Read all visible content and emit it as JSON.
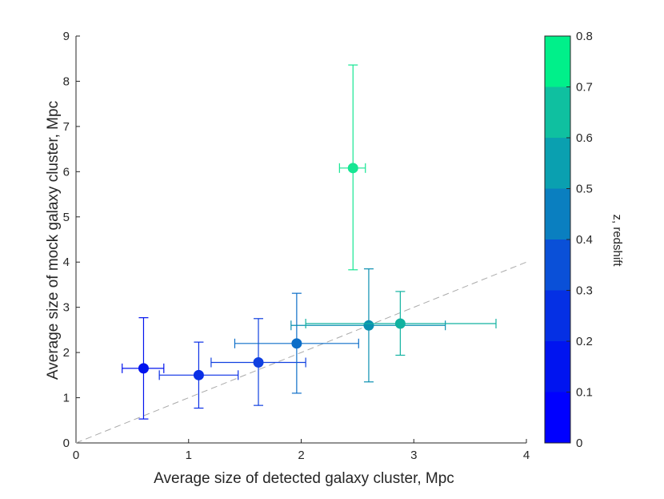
{
  "chart_data": {
    "type": "scatter",
    "title": "",
    "xlabel": "Average size of detected galaxy cluster, Mpc",
    "ylabel": "Average size of mock galaxy cluster, Mpc",
    "xlim": [
      0,
      4
    ],
    "ylim": [
      0,
      9
    ],
    "xticks": [
      "0",
      "1",
      "2",
      "3",
      "4"
    ],
    "yticks": [
      "0",
      "1",
      "2",
      "3",
      "4",
      "5",
      "6",
      "7",
      "8",
      "9"
    ],
    "grid": false,
    "reference_line": {
      "style": "dashed",
      "color": "#aaaaaa",
      "x": [
        0,
        4
      ],
      "y": [
        0,
        4
      ]
    },
    "points": [
      {
        "x": 0.6,
        "y": 1.65,
        "xlo": 0.41,
        "xhi": 0.78,
        "ylo": 0.53,
        "yhi": 2.77,
        "z": 0.05,
        "color": "#0013ee"
      },
      {
        "x": 1.09,
        "y": 1.5,
        "xlo": 0.74,
        "xhi": 1.44,
        "ylo": 0.77,
        "yhi": 2.23,
        "z": 0.15,
        "color": "#0a2fe6"
      },
      {
        "x": 1.62,
        "y": 1.78,
        "xlo": 1.2,
        "xhi": 2.04,
        "ylo": 0.83,
        "yhi": 2.75,
        "z": 0.25,
        "color": "#1040e0"
      },
      {
        "x": 1.96,
        "y": 2.2,
        "xlo": 1.41,
        "xhi": 2.51,
        "ylo": 1.1,
        "yhi": 3.31,
        "z": 0.35,
        "color": "#0c6ec8"
      },
      {
        "x": 2.6,
        "y": 2.6,
        "xlo": 1.91,
        "xhi": 3.28,
        "ylo": 1.35,
        "yhi": 3.85,
        "z": 0.45,
        "color": "#0a8fb0"
      },
      {
        "x": 2.88,
        "y": 2.64,
        "xlo": 2.04,
        "xhi": 3.73,
        "ylo": 1.94,
        "yhi": 3.35,
        "z": 0.55,
        "color": "#11b2a0"
      },
      {
        "x": 2.46,
        "y": 6.08,
        "xlo": 2.34,
        "xhi": 2.57,
        "ylo": 3.83,
        "yhi": 8.36,
        "z": 0.75,
        "color": "#16e693"
      }
    ],
    "colorbar": {
      "label": "z, redshift",
      "ticks": [
        "0",
        "0.1",
        "0.2",
        "0.3",
        "0.4",
        "0.5",
        "0.6",
        "0.7",
        "0.8"
      ],
      "range": [
        0,
        0.8
      ],
      "bands": [
        {
          "from": 0.0,
          "to": 0.1,
          "color": "#0000ff"
        },
        {
          "from": 0.1,
          "to": 0.2,
          "color": "#0014f0"
        },
        {
          "from": 0.2,
          "to": 0.3,
          "color": "#0530e4"
        },
        {
          "from": 0.3,
          "to": 0.4,
          "color": "#0a50d8"
        },
        {
          "from": 0.4,
          "to": 0.5,
          "color": "#0a7fc0"
        },
        {
          "from": 0.5,
          "to": 0.6,
          "color": "#0aa0b0"
        },
        {
          "from": 0.6,
          "to": 0.7,
          "color": "#0fc0a0"
        },
        {
          "from": 0.7,
          "to": 0.8,
          "color": "#00f08a"
        }
      ]
    }
  }
}
